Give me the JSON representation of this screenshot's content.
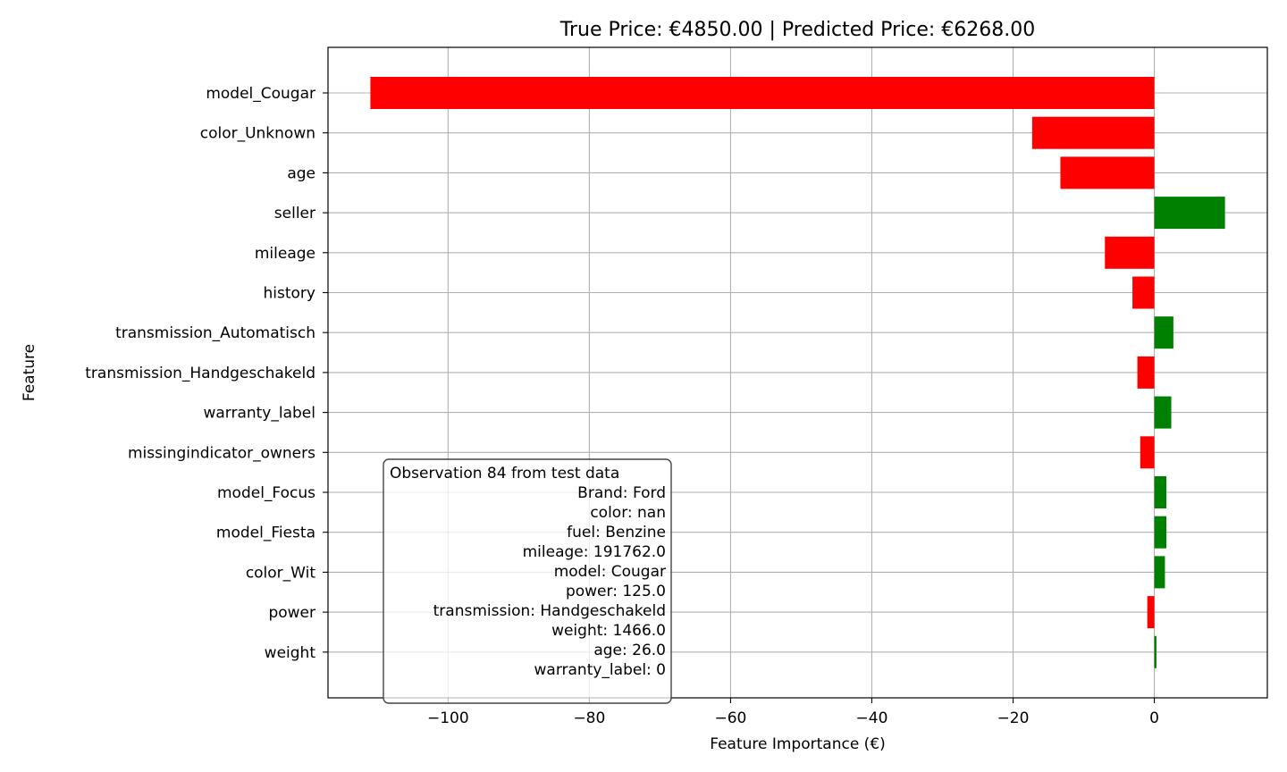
{
  "chart_data": {
    "type": "bar",
    "orientation": "horizontal",
    "title": "True Price: €4850.00 | Predicted Price: €6268.00",
    "xlabel": "Feature Importance (€)",
    "ylabel": "Feature",
    "xlim": [
      -117,
      16
    ],
    "xticks": [
      -100,
      -80,
      -60,
      -40,
      -20,
      0
    ],
    "xtick_labels": [
      "−100",
      "−80",
      "−60",
      "−40",
      "−20",
      "0"
    ],
    "grid": true,
    "positive_color": "#008000",
    "negative_color": "#ff0000",
    "categories": [
      "model_Cougar",
      "color_Unknown",
      "age",
      "seller",
      "mileage",
      "history",
      "transmission_Automatisch",
      "transmission_Handgeschakeld",
      "warranty_label",
      "missingindicator_owners",
      "model_Focus",
      "model_Fiesta",
      "color_Wit",
      "power",
      "weight"
    ],
    "values": [
      -111,
      -17.3,
      -13.3,
      10,
      -7,
      -3.1,
      2.7,
      -2.4,
      2.4,
      -2,
      1.7,
      1.7,
      1.5,
      -1,
      0.3
    ],
    "annotation": {
      "lines": [
        "Observation 84 from test data",
        "Brand: Ford",
        "color: nan",
        "fuel: Benzine",
        "mileage: 191762.0",
        "model: Cougar",
        "power: 125.0",
        "transmission: Handgeschakeld",
        "weight: 1466.0",
        "age: 26.0",
        "warranty_label: 0"
      ]
    }
  }
}
